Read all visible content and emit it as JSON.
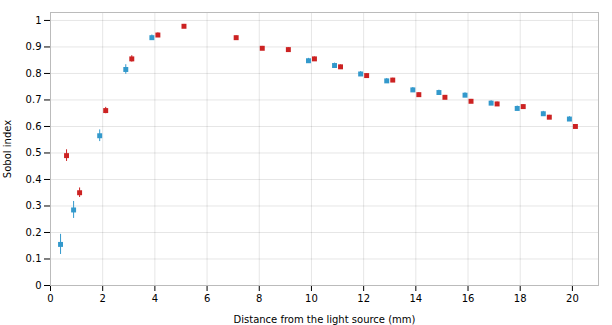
{
  "chart_data": {
    "type": "scatter",
    "xlabel": "Distance from the light source (mm)",
    "ylabel": "Sobol index",
    "xlim": [
      0,
      21
    ],
    "ylim": [
      0,
      1.03
    ],
    "xticks": [
      0,
      2,
      4,
      6,
      8,
      10,
      12,
      14,
      16,
      18,
      20
    ],
    "yticks": [
      0,
      0.1,
      0.2,
      0.3,
      0.4,
      0.5,
      0.6,
      0.7,
      0.8,
      0.9,
      1
    ],
    "grid": true,
    "marker": "square",
    "series": [
      {
        "color": "#cc2222",
        "x": [
          0.5,
          1.0,
          2.0,
          3.0,
          4.0,
          5.0,
          7.0,
          8.0,
          9.0,
          10.0,
          11.0,
          12.0,
          13.0,
          14.0,
          15.0,
          16.0,
          17.0,
          18.0,
          19.0,
          20.0
        ],
        "values": [
          0.49,
          0.35,
          0.66,
          0.855,
          0.945,
          0.978,
          0.935,
          0.895,
          0.89,
          0.855,
          0.825,
          0.792,
          0.775,
          0.72,
          0.71,
          0.695,
          0.685,
          0.675,
          0.635,
          0.6
        ],
        "yerr": [
          0.022,
          0.018,
          0.012,
          0.012,
          0.008,
          0.007,
          0.007,
          0.007,
          0.007,
          0.007,
          0.007,
          0.007,
          0.007,
          0.007,
          0.007,
          0.007,
          0.007,
          0.007,
          0.007,
          0.007
        ]
      },
      {
        "color": "#3399cc",
        "x": [
          0.5,
          1.0,
          2.0,
          3.0,
          4.0,
          10.0,
          11.0,
          12.0,
          13.0,
          14.0,
          15.0,
          16.0,
          17.0,
          18.0,
          19.0,
          20.0
        ],
        "values": [
          0.155,
          0.285,
          0.565,
          0.815,
          0.935,
          0.848,
          0.83,
          0.798,
          0.772,
          0.738,
          0.728,
          0.718,
          0.688,
          0.668,
          0.648,
          0.628
        ],
        "yerr": [
          0.038,
          0.032,
          0.022,
          0.018,
          0.01,
          0.009,
          0.009,
          0.009,
          0.009,
          0.009,
          0.009,
          0.009,
          0.009,
          0.009,
          0.009,
          0.009
        ]
      }
    ]
  }
}
